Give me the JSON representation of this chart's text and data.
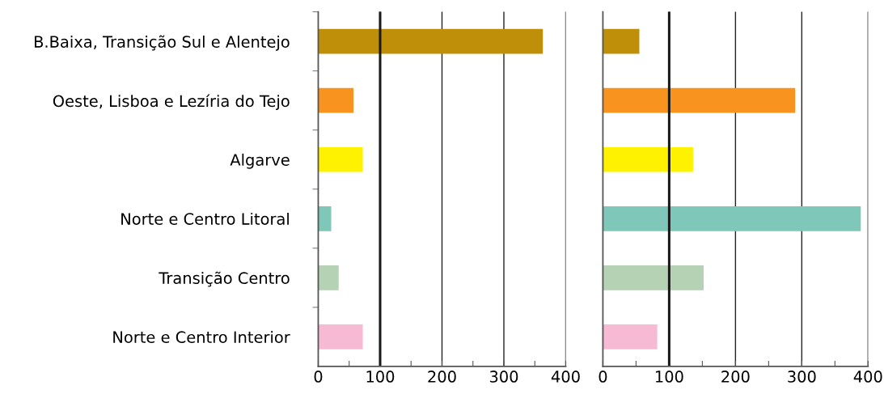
{
  "chart_data": [
    {
      "type": "bar",
      "orientation": "horizontal",
      "categories": [
        "B.Baixa, Transição Sul e Alentejo",
        "Oeste, Lisboa e Lezíria do Tejo",
        "Algarve",
        "Norte e Centro Litoral",
        "Transição Centro",
        "Norte e Centro Interior"
      ],
      "values": [
        363,
        57,
        72,
        21,
        33,
        72
      ],
      "colors": [
        "#bf8f0a",
        "#f7931e",
        "#fff200",
        "#7fc7b9",
        "#b5d2b4",
        "#f6bad5"
      ],
      "xlim": [
        0,
        400
      ],
      "xticks": [
        0,
        {
          "value": 50,
          "label": null
        },
        100,
        {
          "value": 150,
          "label": null
        },
        200,
        {
          "value": 250,
          "label": null
        },
        300,
        {
          "value": 350,
          "label": null
        },
        400
      ],
      "grid": "x",
      "ref_lines": [
        {
          "axis": "x",
          "value": 100,
          "color": "#1a1a1a"
        }
      ]
    },
    {
      "type": "bar",
      "orientation": "horizontal",
      "categories": [
        null,
        null,
        null,
        null,
        null,
        null
      ],
      "values": [
        55,
        290,
        136,
        389,
        152,
        82
      ],
      "colors": [
        "#bf8f0a",
        "#f7931e",
        "#fff200",
        "#7fc7b9",
        "#b5d2b4",
        "#f6bad5"
      ],
      "xlim": [
        0,
        400
      ],
      "xticks": [
        0,
        {
          "value": 50,
          "label": null
        },
        100,
        {
          "value": 150,
          "label": null
        },
        200,
        {
          "value": 250,
          "label": null
        },
        300,
        {
          "value": 350,
          "label": null
        },
        400
      ],
      "grid": "x",
      "ref_lines": [
        {
          "axis": "x",
          "value": 100,
          "color": "#1a1a1a"
        }
      ],
      "tick_labels": "x"
    }
  ]
}
